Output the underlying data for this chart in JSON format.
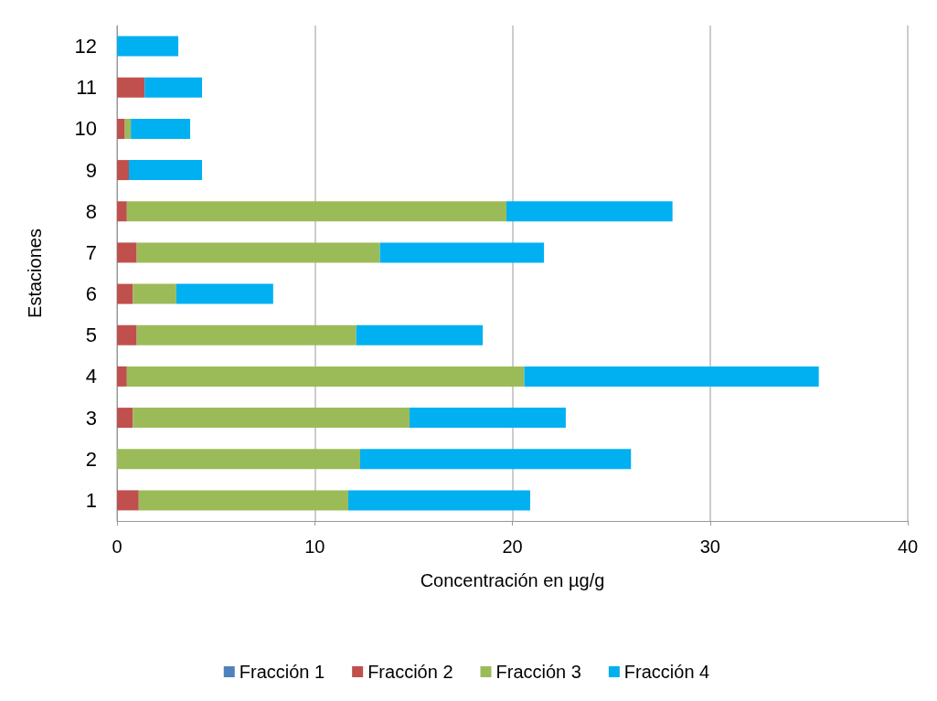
{
  "chart_data": {
    "type": "bar",
    "orientation": "horizontal",
    "stacked": true,
    "xlabel": "Concentración en µg/g",
    "ylabel": "Estaciones",
    "categories": [
      "12",
      "11",
      "10",
      "9",
      "8",
      "7",
      "6",
      "5",
      "4",
      "3",
      "2",
      "1"
    ],
    "series": [
      {
        "name": "Fracción 1",
        "color": "#4f81bd",
        "values": [
          0,
          0,
          0,
          0,
          0,
          0,
          0,
          0,
          0,
          0,
          0,
          0
        ]
      },
      {
        "name": "Fracción 2",
        "color": "#c0504d",
        "values": [
          0,
          1.4,
          0.4,
          0.6,
          0.5,
          1.0,
          0.8,
          1.0,
          0.5,
          0.8,
          0,
          1.1
        ]
      },
      {
        "name": "Fracción 3",
        "color": "#9bbb59",
        "values": [
          0,
          0,
          0.3,
          0,
          19.2,
          12.3,
          2.2,
          11.1,
          20.1,
          14.0,
          12.3,
          10.6
        ]
      },
      {
        "name": "Fracción 4",
        "color": "#00b0f0",
        "values": [
          3.1,
          2.9,
          3.0,
          3.7,
          8.4,
          8.3,
          4.9,
          6.4,
          14.9,
          7.9,
          13.7,
          9.2
        ]
      }
    ],
    "xlim": [
      0,
      40
    ],
    "xticks": [
      0,
      10,
      20,
      30,
      40
    ],
    "grid": "x",
    "legend": "bottom"
  }
}
